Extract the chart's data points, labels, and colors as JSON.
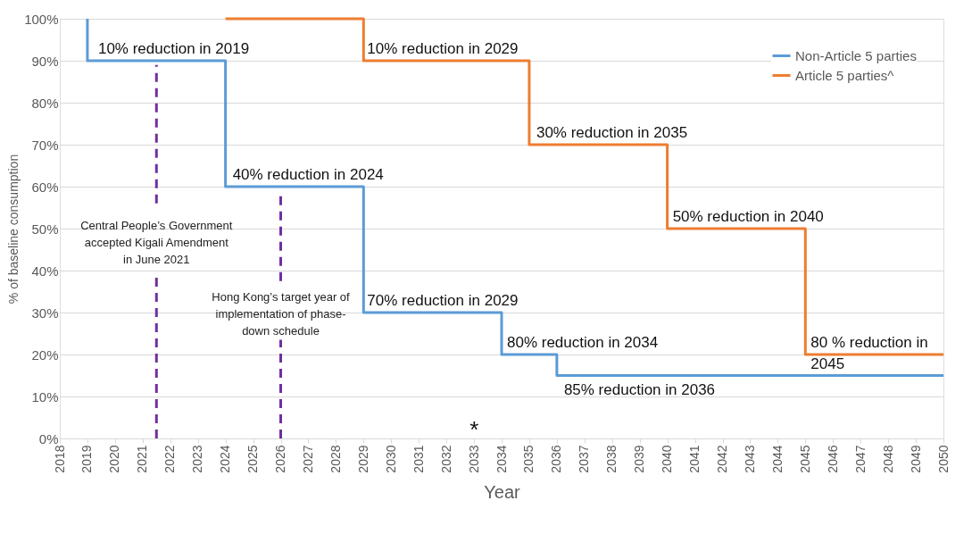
{
  "chart_data": {
    "type": "step",
    "xlabel": "Year",
    "ylabel": "% of baseline consumption",
    "xlim": [
      2018,
      2050
    ],
    "xticks": [
      2018,
      2019,
      2020,
      2021,
      2022,
      2023,
      2024,
      2025,
      2026,
      2027,
      2028,
      2029,
      2030,
      2031,
      2032,
      2033,
      2034,
      2035,
      2036,
      2037,
      2038,
      2039,
      2040,
      2041,
      2042,
      2043,
      2044,
      2045,
      2046,
      2047,
      2048,
      2049,
      2050
    ],
    "ylim": [
      0,
      100
    ],
    "yticks": [
      {
        "value": 0,
        "label": "0%"
      },
      {
        "value": 10,
        "label": "10%"
      },
      {
        "value": 20,
        "label": "20%"
      },
      {
        "value": 30,
        "label": "30%"
      },
      {
        "value": 40,
        "label": "40%"
      },
      {
        "value": 50,
        "label": "50%"
      },
      {
        "value": 60,
        "label": "60%"
      },
      {
        "value": 70,
        "label": "70%"
      },
      {
        "value": 80,
        "label": "80%"
      },
      {
        "value": 90,
        "label": "90%"
      },
      {
        "value": 100,
        "label": "100%"
      }
    ],
    "grid": "y",
    "legend": "top right",
    "line_style": "solid",
    "marker": "none",
    "series": [
      {
        "name": "Non-Article 5 parties",
        "color": "#5b9bd5",
        "x": [
          2019,
          2019,
          2024,
          2029,
          2034,
          2036,
          2050
        ],
        "values": [
          100,
          90,
          60,
          30,
          20,
          15,
          15
        ]
      },
      {
        "name": "Article 5 parties^",
        "color": "#ed7d31",
        "x": [
          2024,
          2029,
          2035,
          2040,
          2045,
          2050
        ],
        "values": [
          100,
          90,
          70,
          50,
          20,
          20
        ]
      }
    ],
    "ref_lines": [
      {
        "axis": "x",
        "value": 2021.5,
        "label": "Central People’s Government\naccepted Kigali Amendment\nin June 2021",
        "color": "#7030a0",
        "line_style": "dashed"
      },
      {
        "axis": "x",
        "value": 2026,
        "label": "Hong Kong’s target year of\nimplementation of phase-\ndown schedule",
        "color": "#7030a0",
        "line_style": "dashed"
      }
    ],
    "annotations": [
      {
        "text": "10% reduction in 2019",
        "x": 2019,
        "y": 90
      },
      {
        "text": "40% reduction in 2024",
        "x": 2024,
        "y": 60
      },
      {
        "text": "70% reduction in 2029",
        "x": 2029,
        "y": 30
      },
      {
        "text": "80% reduction in 2034",
        "x": 2034,
        "y": 20
      },
      {
        "text": "85% reduction in 2036",
        "x": 2036,
        "y": 15
      },
      {
        "text": "10% reduction in 2029",
        "x": 2029,
        "y": 90
      },
      {
        "text": "30% reduction in 2035",
        "x": 2035,
        "y": 70
      },
      {
        "text": "50% reduction in 2040",
        "x": 2040,
        "y": 50
      },
      {
        "text": "80 % reduction in\n2045",
        "x": 2045,
        "y": 20
      },
      "*"
    ]
  }
}
